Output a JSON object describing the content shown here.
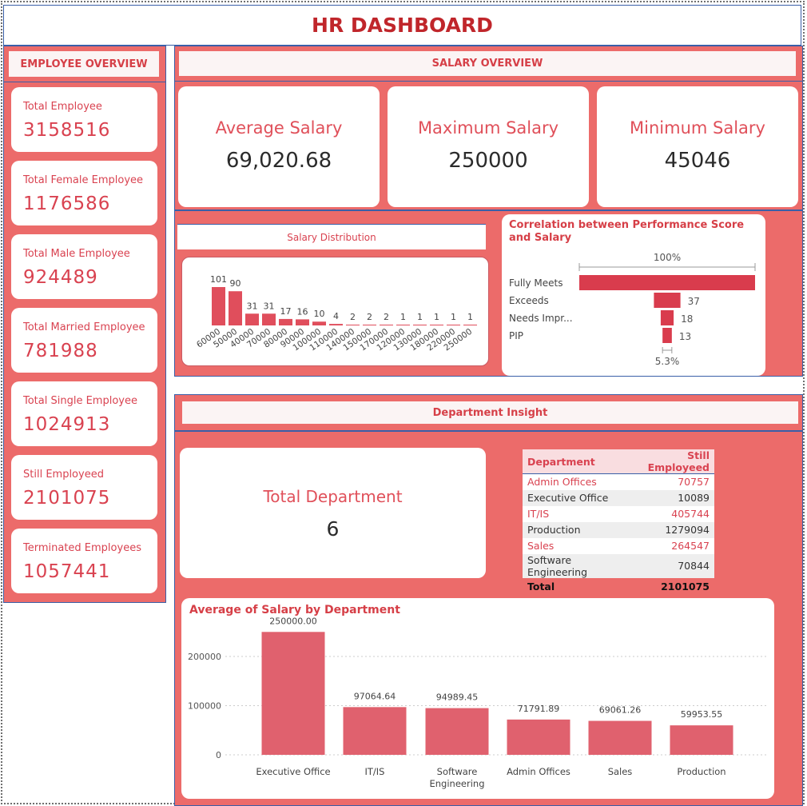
{
  "header": {
    "title": "HR DASHBOARD"
  },
  "employee_overview": {
    "title": "EMPLOYEE OVERVIEW",
    "cards": [
      {
        "label": "Total Employee",
        "value": "3158516"
      },
      {
        "label": "Total Female Employee",
        "value": "1176586"
      },
      {
        "label": "Total Male Employee",
        "value": "924489"
      },
      {
        "label": "Total Married Employee",
        "value": "781988"
      },
      {
        "label": "Total Single Employee",
        "value": "1024913"
      },
      {
        "label": "Still Employeed",
        "value": "2101075"
      },
      {
        "label": "Terminated Employees",
        "value": "1057441"
      }
    ]
  },
  "salary_overview": {
    "title": "SALARY OVERVIEW",
    "kpis": [
      {
        "label": "Average Salary",
        "value": "69,020.68"
      },
      {
        "label": "Maximum Salary",
        "value": "250000"
      },
      {
        "label": "Minimum Salary",
        "value": "45046"
      }
    ]
  },
  "salary_distribution": {
    "title": "Salary Distribution"
  },
  "correlation": {
    "title": "Correlation between Performance Score and Salary",
    "top_label": "100%",
    "bottom_label": "5.3%"
  },
  "department_insight": {
    "title": "Department Insight",
    "total_department": {
      "label": "Total Department",
      "value": "6"
    },
    "table": {
      "headers": [
        "Department",
        "Still Employeed"
      ],
      "rows": [
        [
          "Admin Offices",
          "70757"
        ],
        [
          "Executive Office",
          "10089"
        ],
        [
          "IT/IS",
          "405744"
        ],
        [
          "Production",
          "1279094"
        ],
        [
          "Sales",
          "264547"
        ],
        [
          "Software Engineering",
          "70844"
        ]
      ],
      "total_label": "Total",
      "total_value": "2101075"
    }
  },
  "chart_data": [
    {
      "type": "bar",
      "title": "Salary Distribution",
      "categories": [
        "60000",
        "50000",
        "40000",
        "70000",
        "80000",
        "90000",
        "100000",
        "110000",
        "140000",
        "150000",
        "170000",
        "120000",
        "130000",
        "180000",
        "220000",
        "250000"
      ],
      "values": [
        101,
        90,
        31,
        31,
        17,
        16,
        10,
        4,
        2,
        2,
        2,
        1,
        1,
        1,
        1,
        1
      ],
      "color": "#e04e5c"
    },
    {
      "type": "bar",
      "subtype": "funnel",
      "title": "Correlation between Performance Score and Salary",
      "categories": [
        "Fully Meets",
        "Exceeds",
        "Needs Impr...",
        "PIP"
      ],
      "values": [
        245,
        37,
        18,
        13
      ],
      "value_labels": [
        "",
        "37",
        "18",
        "13"
      ],
      "percent_labels": {
        "top": "100%",
        "bottom": "5.3%"
      },
      "color": "#d93c4d"
    },
    {
      "type": "bar",
      "title": "Average of Salary by Department",
      "categories": [
        "Executive Office",
        "IT/IS",
        "Software Engineering",
        "Admin Offices",
        "Sales",
        "Production"
      ],
      "values": [
        250000.0,
        97064.64,
        94989.45,
        71791.89,
        69061.26,
        59953.55
      ],
      "value_labels": [
        "250000.00",
        "97064.64",
        "94989.45",
        "71791.89",
        "69061.26",
        "59953.55"
      ],
      "yticks": [
        "0",
        "100000",
        "200000"
      ],
      "ylim": [
        0,
        270000
      ],
      "grid": true,
      "color": "#e0616e"
    }
  ],
  "colors": {
    "panel": "#ec6b6a",
    "accent": "#d63f47",
    "title": "#c0262b",
    "kpi_value": "#2b2b2b",
    "header_row": "#f9dde0",
    "stripe": "#eeeeee"
  }
}
